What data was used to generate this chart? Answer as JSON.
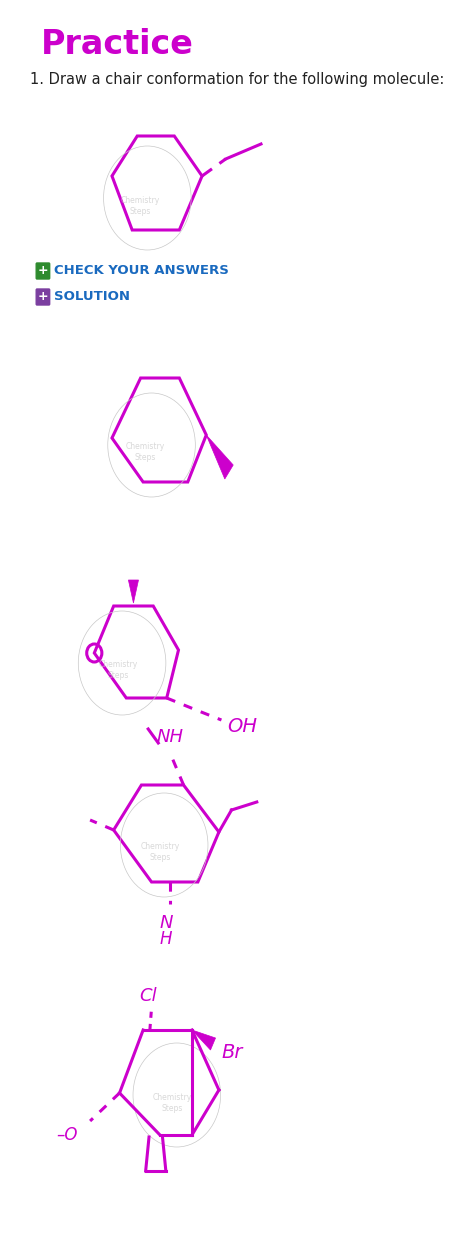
{
  "title": "Practice",
  "title_color": "#cc00cc",
  "bg_color": "#ffffff",
  "text_color": "#222222",
  "mol_color": "#cc00cc",
  "question_text": "1. Draw a chair conformation for the following molecule:",
  "check_answers_text": "CHECK YOUR ANSWERS",
  "solution_text": "SOLUTION",
  "btn_green": "#2e8b2e",
  "btn_purple": "#7b3fa0",
  "btn_text_color": "#1a6abf",
  "watermark_color": "#c8c8c8"
}
